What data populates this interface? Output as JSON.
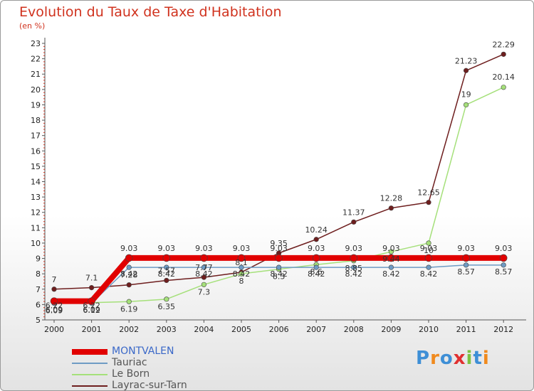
{
  "chart_data": {
    "type": "line",
    "title": "Evolution du Taux de Taxe d'Habitation",
    "subtitle": "(en %)",
    "xlabel": "",
    "ylabel": "",
    "x": [
      "2000",
      "2001",
      "2002",
      "2003",
      "2004",
      "2005",
      "2006",
      "2007",
      "2008",
      "2009",
      "2010",
      "2011",
      "2012"
    ],
    "ylim": [
      5,
      23
    ],
    "yticks": [
      5,
      6,
      7,
      8,
      9,
      10,
      11,
      12,
      13,
      14,
      15,
      16,
      17,
      18,
      19,
      20,
      21,
      22,
      23
    ],
    "series": [
      {
        "name": "MONTVALEN",
        "color": "#e10000",
        "width": 8,
        "values": [
          6.22,
          6.22,
          9.03,
          9.03,
          9.03,
          9.03,
          9.03,
          9.03,
          9.03,
          9.03,
          9.03,
          9.03,
          9.03
        ],
        "labels": [
          "6.22",
          "6.22",
          "9.03",
          "9.03",
          "9.03",
          "9.03",
          "9.03",
          "9.03",
          "9.03",
          "9.03",
          "9.03",
          "9.03",
          "9.03"
        ]
      },
      {
        "name": "Tauriac",
        "color": "#6e9bc4",
        "width": 1.5,
        "values": [
          6.09,
          6.09,
          8.42,
          8.42,
          8.42,
          8.42,
          8.42,
          8.42,
          8.42,
          8.42,
          8.42,
          8.57,
          8.57
        ],
        "labels": [
          "6.09",
          "6.09",
          "8.42",
          "8.42",
          "8.42",
          "8.42",
          "8.42",
          "8.42",
          "8.42",
          "8.42",
          "8.42",
          "8.57",
          "8.57"
        ]
      },
      {
        "name": "Le Born",
        "color": "#a5e07a",
        "width": 1.5,
        "values": [
          6.09,
          6.12,
          6.19,
          6.35,
          7.3,
          8.0,
          8.3,
          8.6,
          8.85,
          9.44,
          10,
          19,
          20.14
        ],
        "labels": [
          "6.09",
          "6.12",
          "6.19",
          "6.35",
          "7.3",
          "8",
          "8.3",
          "8.6",
          "8.85",
          "9.44",
          "10",
          "19",
          "20.14"
        ]
      },
      {
        "name": "Layrac-sur-Tarn",
        "color": "#6e1e1e",
        "width": 1.5,
        "values": [
          7,
          7.1,
          7.28,
          7.57,
          7.77,
          8.1,
          9.35,
          10.24,
          11.37,
          12.28,
          12.65,
          21.23,
          22.29
        ],
        "labels": [
          "7",
          "7.1",
          "7.28",
          "7.57",
          "7.77",
          "8.1",
          "9.35",
          "10.24",
          "11.37",
          "12.28",
          "12.65",
          "21.23",
          "22.29"
        ]
      }
    ],
    "legend_position": "bottom-left"
  },
  "logo": {
    "text": "Proxiti"
  }
}
